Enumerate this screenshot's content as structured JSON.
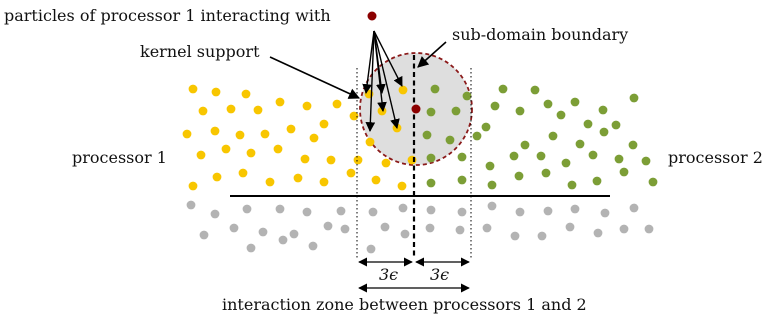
{
  "labels": {
    "top_text": "particles of processor 1 interacting with",
    "kernel_support": "kernel support",
    "subdomain_boundary": "sub-domain boundary",
    "processor_left": "processor 1",
    "processor_right": "processor 2",
    "dim_left": "3ϵ",
    "dim_right": "3ϵ",
    "interaction_zone": "interaction zone between processors 1 and 2"
  },
  "colors": {
    "proc1": "#f8c600",
    "proc2": "#7c9e36",
    "ghost": "#b3b3b3",
    "target": "#8b0000",
    "kernel_fill": "#dedede",
    "kernel_edge": "#8b1a1a",
    "line": "#000000"
  }
}
